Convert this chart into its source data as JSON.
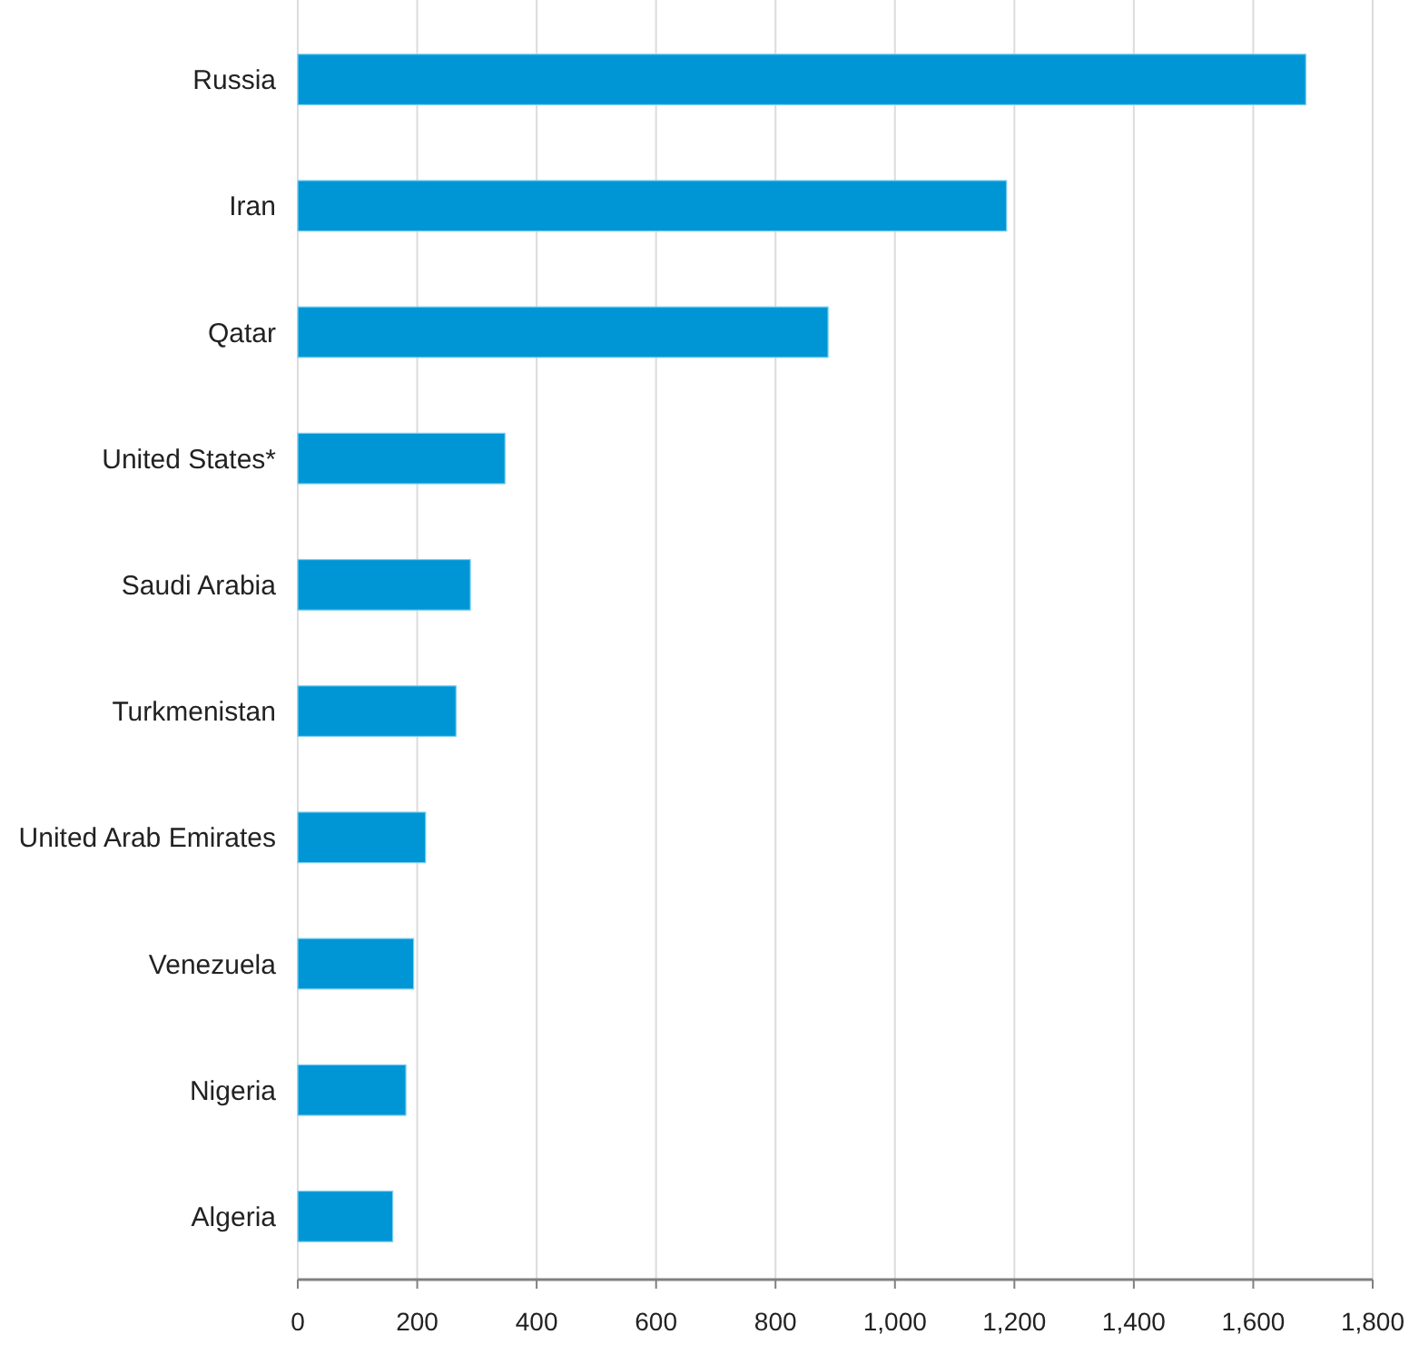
{
  "chart_data": {
    "type": "bar",
    "orientation": "horizontal",
    "categories": [
      "Russia",
      "Iran",
      "Qatar",
      "United States*",
      "Saudi Arabia",
      "Turkmenistan",
      "United Arab Emirates",
      "Venezuela",
      "Nigeria",
      "Algeria"
    ],
    "values": [
      1688,
      1187,
      888,
      347,
      289,
      265,
      214,
      194,
      181,
      159
    ],
    "color": "#0096d6",
    "xlim": [
      0,
      1800
    ],
    "xticks": [
      0,
      {
        "value": 200,
        "label": "200"
      },
      {
        "value": 400,
        "label": "400"
      },
      {
        "value": 600,
        "label": "600"
      },
      {
        "value": 800,
        "label": "800"
      },
      {
        "value": 1000,
        "label": "1,000"
      },
      {
        "value": 1200,
        "label": "1,200"
      },
      {
        "value": 1400,
        "label": "1,400"
      },
      {
        "value": 1600,
        "label": "1,600"
      },
      {
        "value": 1800,
        "label": "1,800"
      }
    ],
    "grid": "x"
  }
}
